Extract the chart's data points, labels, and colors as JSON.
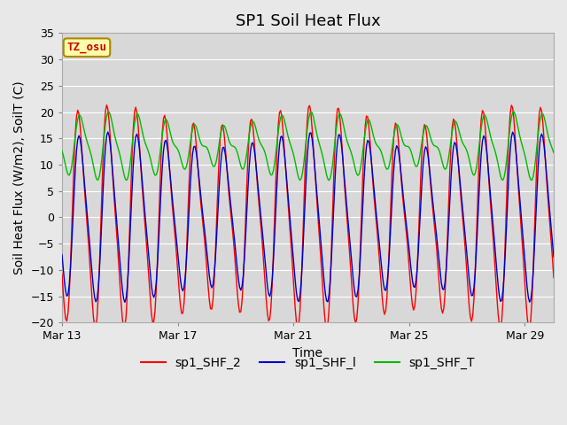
{
  "title": "SP1 Soil Heat Flux",
  "xlabel": "Time",
  "ylabel": "Soil Heat Flux (W/m2), SoilT (C)",
  "ylim": [
    -20,
    35
  ],
  "xtick_labels": [
    "Mar 13",
    "Mar 17",
    "Mar 21",
    "Mar 25",
    "Mar 29"
  ],
  "xtick_positions": [
    0,
    4,
    8,
    12,
    16
  ],
  "color_shf2": "#ff0000",
  "color_shf1": "#0000cc",
  "color_shft": "#00bb00",
  "label_shf2": "sp1_SHF_2",
  "label_shf1": "sp1_SHF_l",
  "label_shft": "sp1_SHF_T",
  "tz_label": "TZ_osu",
  "tz_box_color": "#ffffaa",
  "tz_text_color": "#cc0000",
  "tz_border_color": "#aa8800",
  "bg_color": "#e8e8e8",
  "plot_bg_color": "#d8d8d8",
  "grid_color": "#ffffff",
  "title_fontsize": 13,
  "label_fontsize": 10,
  "tick_fontsize": 9,
  "legend_fontsize": 10
}
